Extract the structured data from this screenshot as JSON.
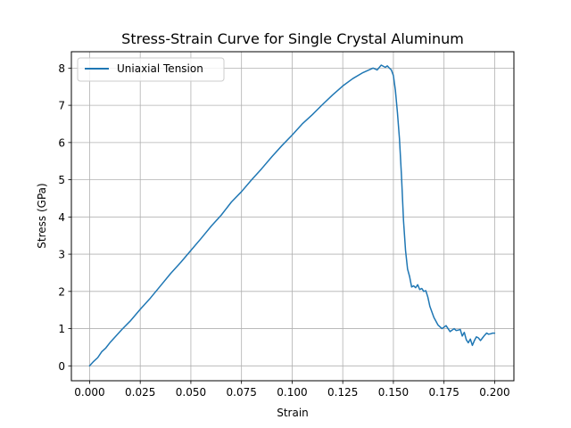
{
  "chart_data": {
    "type": "line",
    "title": "Stress-Strain Curve for Single Crystal Aluminum",
    "xlabel": "Strain",
    "ylabel": "Stress (GPa)",
    "xlim": [
      -0.009,
      0.2095
    ],
    "ylim": [
      -0.4,
      8.44
    ],
    "grid": true,
    "legend_position": "top-left",
    "x_ticks": [
      0.0,
      0.025,
      0.05,
      0.075,
      0.1,
      0.125,
      0.15,
      0.175,
      0.2
    ],
    "x_tick_labels": [
      "0.000",
      "0.025",
      "0.050",
      "0.075",
      "0.100",
      "0.125",
      "0.150",
      "0.175",
      "0.200"
    ],
    "y_ticks": [
      0,
      1,
      2,
      3,
      4,
      5,
      6,
      7,
      8
    ],
    "y_tick_labels": [
      "0",
      "1",
      "2",
      "3",
      "4",
      "5",
      "6",
      "7",
      "8"
    ],
    "series": [
      {
        "name": "Uniaxial Tension",
        "color": "#1f77b4",
        "x": [
          0.0,
          0.002,
          0.004,
          0.006,
          0.008,
          0.01,
          0.013,
          0.016,
          0.02,
          0.025,
          0.03,
          0.035,
          0.04,
          0.045,
          0.05,
          0.055,
          0.06,
          0.065,
          0.07,
          0.075,
          0.08,
          0.085,
          0.09,
          0.095,
          0.1,
          0.105,
          0.11,
          0.115,
          0.12,
          0.125,
          0.13,
          0.135,
          0.14,
          0.142,
          0.144,
          0.146,
          0.147,
          0.148,
          0.149,
          0.15,
          0.151,
          0.152,
          0.153,
          0.154,
          0.155,
          0.156,
          0.157,
          0.158,
          0.159,
          0.16,
          0.161,
          0.162,
          0.163,
          0.164,
          0.165,
          0.166,
          0.167,
          0.168,
          0.169,
          0.17,
          0.172,
          0.174,
          0.176,
          0.178,
          0.18,
          0.181,
          0.182,
          0.183,
          0.184,
          0.185,
          0.186,
          0.187,
          0.188,
          0.189,
          0.19,
          0.191,
          0.192,
          0.193,
          0.194,
          0.195,
          0.196,
          0.197,
          0.198,
          0.199,
          0.2
        ],
        "y": [
          0.0,
          0.12,
          0.22,
          0.38,
          0.48,
          0.62,
          0.8,
          0.98,
          1.2,
          1.52,
          1.82,
          2.15,
          2.48,
          2.78,
          3.1,
          3.42,
          3.75,
          4.05,
          4.4,
          4.68,
          5.0,
          5.3,
          5.62,
          5.92,
          6.2,
          6.5,
          6.75,
          7.02,
          7.28,
          7.52,
          7.72,
          7.88,
          8.0,
          7.95,
          8.08,
          8.02,
          8.06,
          8.0,
          7.95,
          7.8,
          7.4,
          6.8,
          6.1,
          5.1,
          3.9,
          3.1,
          2.6,
          2.4,
          2.12,
          2.15,
          2.1,
          2.18,
          2.05,
          2.08,
          2.0,
          2.02,
          1.85,
          1.6,
          1.45,
          1.3,
          1.1,
          1.0,
          1.08,
          0.92,
          1.0,
          0.95,
          0.96,
          0.98,
          0.8,
          0.9,
          0.7,
          0.62,
          0.72,
          0.55,
          0.68,
          0.78,
          0.75,
          0.68,
          0.75,
          0.82,
          0.88,
          0.85,
          0.86,
          0.88,
          0.88
        ]
      }
    ]
  }
}
